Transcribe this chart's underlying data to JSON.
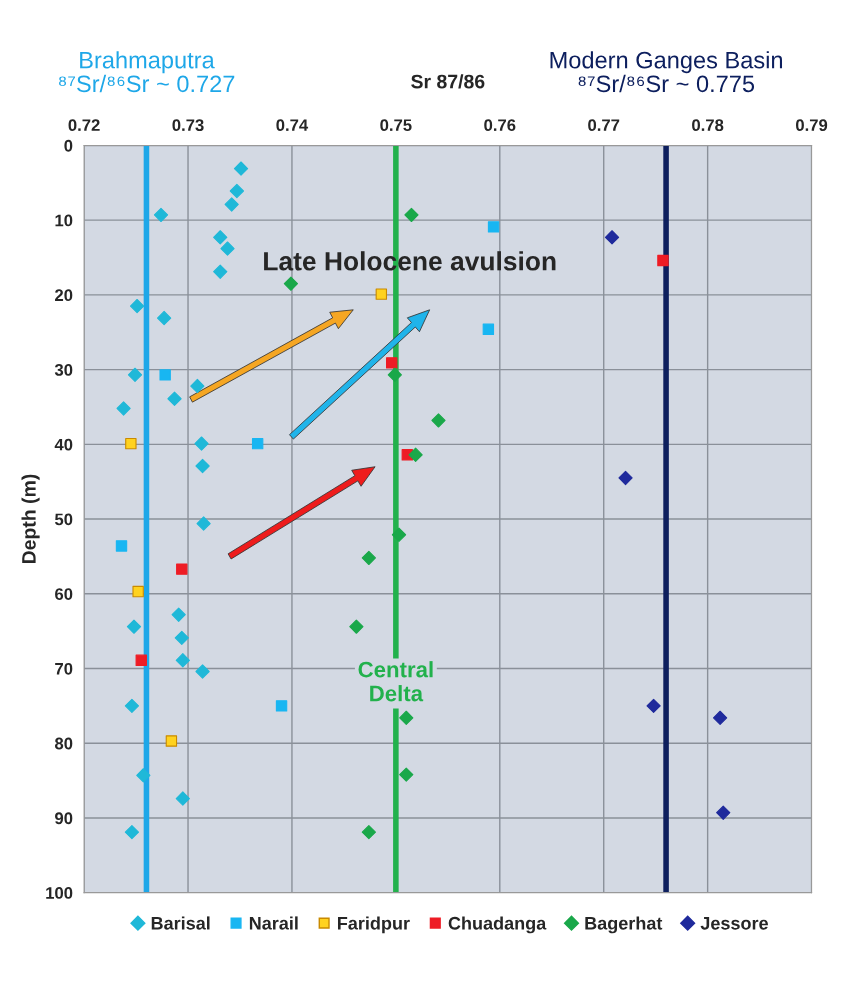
{
  "chart_data": {
    "type": "scatter",
    "xlabel": "Sr 87/86",
    "ylabel": "Depth (m)",
    "xlim": [
      0.72,
      0.79
    ],
    "xticks": [
      0.72,
      0.73,
      0.74,
      0.75,
      0.76,
      0.77,
      0.78,
      0.79
    ],
    "ylim": [
      100,
      0
    ],
    "yticks": [
      0,
      10,
      20,
      30,
      40,
      50,
      60,
      70,
      80,
      90,
      100
    ],
    "grid": true,
    "legend": "bottom",
    "annotations": [
      "Late Holocene avulsion"
    ],
    "ref_lines": [
      {
        "axis": "x",
        "value": 0.726,
        "label": "Brahmaputra\n⁸⁷Sr/⁸⁶Sr ~ 0.727",
        "color": "#1ea7e8"
      },
      {
        "axis": "x",
        "value": 0.75,
        "label": "Central\nDelta",
        "color": "#22b14c"
      },
      {
        "axis": "x",
        "value": 0.776,
        "label": "Modern Ganges Basin\n⁸⁷Sr/⁸⁶Sr ~ 0.775",
        "color": "#0d1f5e"
      }
    ],
    "series": [
      {
        "name": "Barisal",
        "color": "#1fb8d8",
        "marker": "diamond",
        "x": [
          0.7351,
          0.7347,
          0.7342,
          0.7274,
          0.7331,
          0.7338,
          0.7331,
          0.7251,
          0.7277,
          0.7249,
          0.7309,
          0.7287,
          0.7238,
          0.7313,
          0.7314,
          0.7315,
          0.7291,
          0.7248,
          0.7294,
          0.7295,
          0.7314,
          0.7246,
          0.7257,
          0.7295,
          0.7246
        ],
        "values": [
          3.1,
          6.1,
          7.9,
          9.3,
          12.3,
          13.8,
          16.9,
          21.5,
          23.1,
          30.7,
          32.2,
          33.9,
          35.2,
          39.9,
          42.9,
          50.6,
          62.8,
          64.4,
          65.9,
          68.9,
          70.4,
          75.0,
          84.3,
          87.4,
          91.9
        ]
      },
      {
        "name": "Narail",
        "color": "#18b6f2",
        "marker": "square",
        "x": [
          0.7278,
          0.7367,
          0.7236,
          0.739,
          0.7594,
          0.7589
        ],
        "values": [
          30.7,
          39.9,
          53.6,
          75.0,
          10.9,
          24.6
        ]
      },
      {
        "name": "Faridpur",
        "color": "#ffd21f",
        "marker": "square",
        "x": [
          0.7245,
          0.7486,
          0.7252,
          0.7284
        ],
        "values": [
          39.9,
          19.9,
          59.7,
          79.7
        ]
      },
      {
        "name": "Chuadanga",
        "color": "#ee1c25",
        "marker": "square",
        "x": [
          0.7496,
          0.7511,
          0.7294,
          0.7255,
          0.7757
        ],
        "values": [
          29.1,
          41.4,
          56.7,
          68.9,
          15.4
        ]
      },
      {
        "name": "Bagerhat",
        "color": "#1aa84a",
        "marker": "diamond",
        "x": [
          0.7515,
          0.7399,
          0.7499,
          0.7541,
          0.7519,
          0.7503,
          0.7474,
          0.7462,
          0.751,
          0.751,
          0.7474
        ],
        "values": [
          9.3,
          18.5,
          30.7,
          36.8,
          41.4,
          52.1,
          55.2,
          64.4,
          76.6,
          84.2,
          91.9
        ]
      },
      {
        "name": "Jessore",
        "color": "#1f2a9c",
        "marker": "diamond",
        "x": [
          0.7708,
          0.7721,
          0.7748,
          0.7812,
          0.7815
        ],
        "values": [
          12.3,
          44.5,
          75.0,
          76.6,
          89.3
        ]
      }
    ]
  }
}
